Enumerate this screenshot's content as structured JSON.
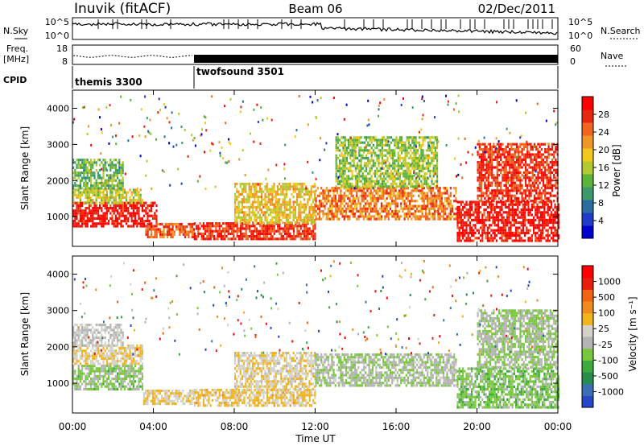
{
  "header": {
    "station": "Inuvik (fitACF)",
    "beam": "Beam 06",
    "date": "02/Dec/2011"
  },
  "noise_panel": {
    "left_label": "N.Sky",
    "right_label": "N.Search",
    "left_ticks": [
      "10^5",
      "10^0"
    ],
    "right_ticks": [
      "10^5",
      "10^0"
    ]
  },
  "freq_panel": {
    "left_label_1": "Freq.",
    "left_label_2": "[MHz]",
    "right_label": "Nave",
    "left_ticks": [
      "18",
      "8"
    ],
    "right_ticks": [
      "60",
      "0"
    ]
  },
  "cpid_panel": {
    "label": "CPID",
    "modes": [
      {
        "name": "themis 3300",
        "start_hour": 0,
        "end_hour": 6
      },
      {
        "name": "twofsound 3501",
        "start_hour": 6,
        "end_hour": 24
      }
    ]
  },
  "colors": {
    "power_scale": [
      "#0000cc",
      "#1e3cc8",
      "#2a6ea0",
      "#3c9a6a",
      "#5cb43a",
      "#b4c832",
      "#f0c81e",
      "#f09628",
      "#f0641e",
      "#e6280f",
      "#ff0000"
    ],
    "velocity_scale": [
      "#2846c8",
      "#3c6eb4",
      "#288c50",
      "#3caa3c",
      "#78c83c",
      "#b4b4b4",
      "#d2d2c8",
      "#f0b41e",
      "#f08c1e",
      "#f06414",
      "#e61e0a",
      "#ff0000"
    ]
  },
  "chart_data": [
    {
      "type": "heatmap",
      "title": "",
      "xlabel": "Time UT",
      "ylabel": "Slant Range [km]",
      "x_ticks": [
        "00:00",
        "04:00",
        "08:00",
        "12:00",
        "16:00",
        "20:00",
        "00:00"
      ],
      "y_ticks": [
        "1000",
        "2000",
        "3000",
        "4000"
      ],
      "xlim_hours": [
        0,
        24
      ],
      "ylim_km": [
        180,
        4500
      ],
      "colorbar": {
        "label": "Power [dB]",
        "ticks": [
          "28",
          "24",
          "20",
          "16",
          "12",
          "8",
          "4"
        ],
        "range": [
          0,
          30
        ]
      },
      "bands": [
        {
          "t0": 0.0,
          "t1": 4.2,
          "r0": 700,
          "r1": 1350,
          "value": 28
        },
        {
          "t0": 0.0,
          "t1": 3.5,
          "r0": 1350,
          "r1": 1750,
          "value": 16
        },
        {
          "t0": 0.0,
          "t1": 2.5,
          "r0": 1750,
          "r1": 2600,
          "value": 12
        },
        {
          "t0": 3.6,
          "t1": 6.0,
          "r0": 400,
          "r1": 800,
          "value": 24
        },
        {
          "t0": 6.0,
          "t1": 12.0,
          "r0": 350,
          "r1": 800,
          "value": 26
        },
        {
          "t0": 8.0,
          "t1": 12.0,
          "r0": 800,
          "r1": 1900,
          "value": 18
        },
        {
          "t0": 12.0,
          "t1": 19.0,
          "r0": 900,
          "r1": 1800,
          "value": 22
        },
        {
          "t0": 13.0,
          "t1": 18.0,
          "r0": 1800,
          "r1": 3200,
          "value": 14
        },
        {
          "t0": 19.0,
          "t1": 24.0,
          "r0": 300,
          "r1": 1400,
          "value": 28
        },
        {
          "t0": 20.0,
          "t1": 24.0,
          "r0": 1400,
          "r1": 3000,
          "value": 26
        }
      ]
    },
    {
      "type": "heatmap",
      "title": "",
      "xlabel": "Time UT",
      "ylabel": "Slant Range [km]",
      "x_ticks": [
        "00:00",
        "04:00",
        "08:00",
        "12:00",
        "16:00",
        "20:00",
        "00:00"
      ],
      "y_ticks": [
        "1000",
        "2000",
        "3000",
        "4000"
      ],
      "xlim_hours": [
        0,
        24
      ],
      "ylim_km": [
        180,
        4500
      ],
      "colorbar": {
        "label": "Velocity [m s⁻¹]",
        "ticks": [
          "1000",
          "500",
          "100",
          "25",
          "-25",
          "-100",
          "-500",
          "-1000"
        ],
        "range": [
          -1000,
          1000
        ]
      },
      "bands": [
        {
          "t0": 0.0,
          "t1": 3.5,
          "r0": 800,
          "r1": 1500,
          "value": -200
        },
        {
          "t0": 0.0,
          "t1": 3.5,
          "r0": 1500,
          "r1": 2000,
          "value": 150
        },
        {
          "t0": 0.0,
          "t1": 2.5,
          "r0": 2000,
          "r1": 2600,
          "value": 0
        },
        {
          "t0": 3.5,
          "t1": 6.0,
          "r0": 400,
          "r1": 800,
          "value": 150
        },
        {
          "t0": 6.0,
          "t1": 12.0,
          "r0": 350,
          "r1": 800,
          "value": 200
        },
        {
          "t0": 8.0,
          "t1": 12.0,
          "r0": 800,
          "r1": 1800,
          "value": 120
        },
        {
          "t0": 12.0,
          "t1": 19.0,
          "r0": 900,
          "r1": 1800,
          "value": -120
        },
        {
          "t0": 19.0,
          "t1": 24.0,
          "r0": 300,
          "r1": 1400,
          "value": -250
        },
        {
          "t0": 20.0,
          "t1": 24.0,
          "r0": 1400,
          "r1": 3000,
          "value": -150
        }
      ]
    }
  ]
}
